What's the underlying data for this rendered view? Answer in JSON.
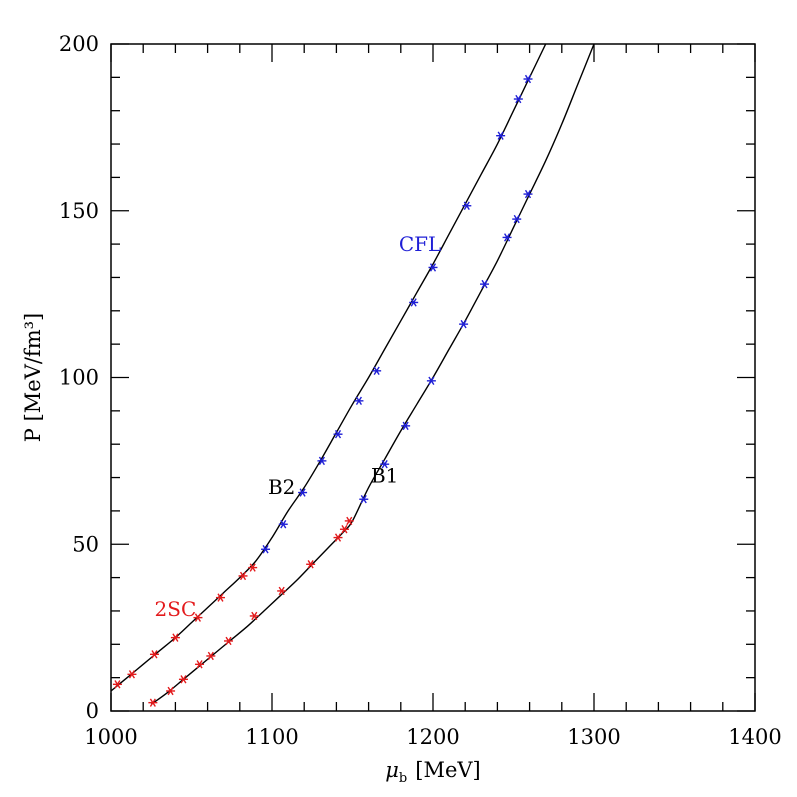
{
  "chart_data": {
    "type": "line",
    "xlabel_symbol": "μ",
    "xlabel_subscript": "b",
    "xlabel_unit": "[MeV]",
    "ylabel": "P [MeV/fm³]",
    "xlim": [
      1000,
      1400
    ],
    "ylim": [
      0,
      200
    ],
    "x_ticks": [
      1000,
      1100,
      1200,
      1300,
      1400
    ],
    "y_ticks": [
      0,
      50,
      100,
      150,
      200
    ],
    "grid": false,
    "colors": {
      "curve": "#000000",
      "phase_2SC": "#e31a1c",
      "phase_CFL": "#1f1fd6"
    },
    "series": [
      {
        "name": "B2",
        "curve": [
          [
            1000,
            6
          ],
          [
            1010,
            10
          ],
          [
            1020,
            14
          ],
          [
            1030,
            18
          ],
          [
            1040,
            22
          ],
          [
            1050,
            26.5
          ],
          [
            1060,
            31
          ],
          [
            1070,
            35.5
          ],
          [
            1080,
            40
          ],
          [
            1090,
            45
          ],
          [
            1100,
            52
          ],
          [
            1110,
            60
          ],
          [
            1120,
            67
          ],
          [
            1130,
            75
          ],
          [
            1140,
            83.5
          ],
          [
            1150,
            92
          ],
          [
            1160,
            100
          ],
          [
            1170,
            108.5
          ],
          [
            1180,
            117
          ],
          [
            1190,
            125.5
          ],
          [
            1200,
            134
          ],
          [
            1210,
            143
          ],
          [
            1220,
            152
          ],
          [
            1230,
            161
          ],
          [
            1240,
            170
          ],
          [
            1250,
            180
          ],
          [
            1260,
            190
          ],
          [
            1270,
            200
          ]
        ],
        "points_2SC": [
          [
            1004,
            8
          ],
          [
            1013,
            11
          ],
          [
            1027,
            17
          ],
          [
            1040,
            22
          ],
          [
            1054,
            28
          ],
          [
            1068,
            34
          ],
          [
            1082,
            40.5
          ],
          [
            1088,
            43
          ]
        ],
        "points_CFL": [
          [
            1096,
            48.5
          ],
          [
            1107,
            56
          ],
          [
            1119,
            65.5
          ],
          [
            1131,
            75
          ],
          [
            1141,
            83
          ],
          [
            1154,
            93
          ],
          [
            1165,
            102
          ],
          [
            1188,
            122.5
          ],
          [
            1200,
            133
          ],
          [
            1221,
            151.5
          ],
          [
            1242,
            172.5
          ],
          [
            1253,
            183.5
          ],
          [
            1259,
            189.5
          ]
        ]
      },
      {
        "name": "B1",
        "curve": [
          [
            1025,
            2
          ],
          [
            1035,
            5.5
          ],
          [
            1045,
            9.5
          ],
          [
            1055,
            13.5
          ],
          [
            1065,
            17.5
          ],
          [
            1075,
            21.5
          ],
          [
            1085,
            25.5
          ],
          [
            1095,
            30
          ],
          [
            1105,
            34.5
          ],
          [
            1115,
            39
          ],
          [
            1125,
            44
          ],
          [
            1135,
            49
          ],
          [
            1145,
            54
          ],
          [
            1150,
            57
          ],
          [
            1160,
            67
          ],
          [
            1170,
            75.5
          ],
          [
            1180,
            84
          ],
          [
            1190,
            92
          ],
          [
            1200,
            100
          ],
          [
            1210,
            108.5
          ],
          [
            1220,
            117
          ],
          [
            1230,
            126
          ],
          [
            1240,
            135
          ],
          [
            1250,
            145
          ],
          [
            1260,
            155
          ],
          [
            1270,
            165
          ],
          [
            1280,
            176
          ],
          [
            1290,
            188
          ],
          [
            1300,
            200
          ]
        ],
        "points_2SC": [
          [
            1026,
            2.5
          ],
          [
            1037,
            6
          ],
          [
            1045,
            9.5
          ],
          [
            1055,
            14
          ],
          [
            1062,
            16.5
          ],
          [
            1073,
            21
          ],
          [
            1089,
            28.5
          ],
          [
            1106,
            36
          ],
          [
            1124,
            44
          ],
          [
            1141,
            52
          ],
          [
            1145,
            54.5
          ],
          [
            1148,
            57
          ]
        ],
        "points_CFL": [
          [
            1157,
            63.5
          ],
          [
            1170,
            74
          ],
          [
            1183,
            85.5
          ],
          [
            1199,
            99
          ],
          [
            1219,
            116
          ],
          [
            1232,
            128
          ],
          [
            1246,
            142
          ],
          [
            1252,
            147.5
          ],
          [
            1259,
            155
          ]
        ]
      }
    ],
    "annotations": [
      {
        "text": "CFL",
        "x": 1192,
        "y": 138,
        "color": "#1f1fd6"
      },
      {
        "text": "B2",
        "x": 1106,
        "y": 65,
        "color": "#000000"
      },
      {
        "text": "B1",
        "x": 1170,
        "y": 68.5,
        "color": "#000000"
      },
      {
        "text": "2SC",
        "x": 1040,
        "y": 28.5,
        "color": "#e31a1c"
      }
    ]
  }
}
